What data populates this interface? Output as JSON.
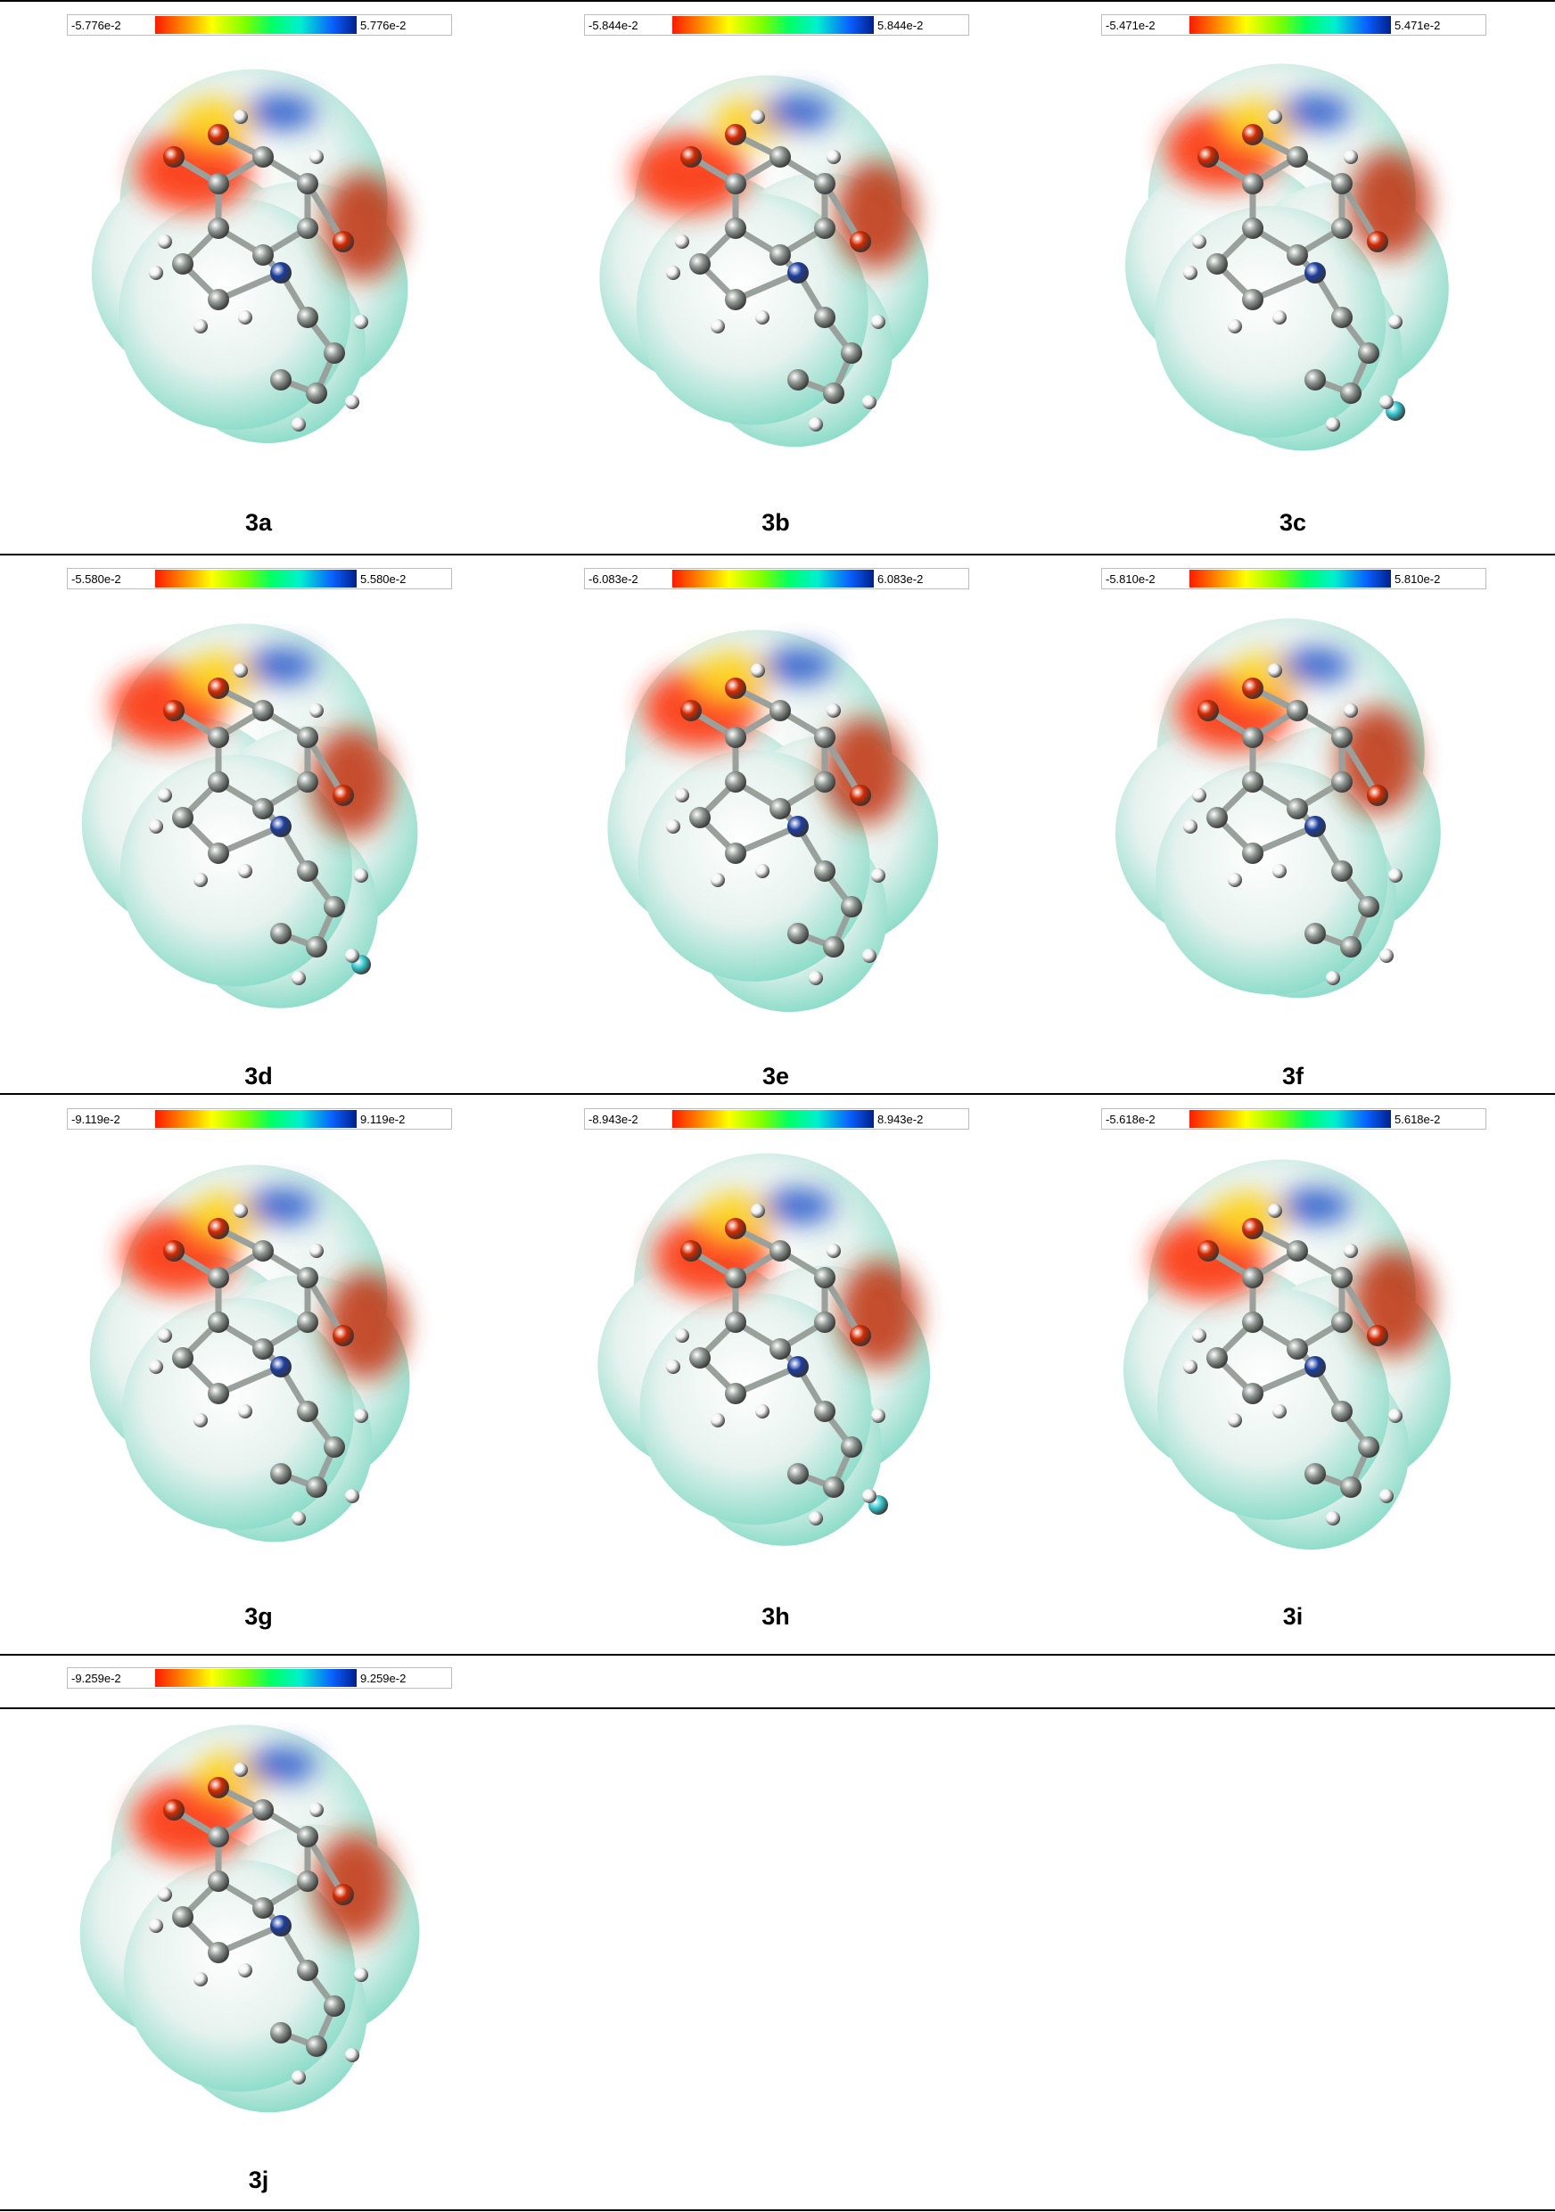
{
  "panels": [
    {
      "label": "3a",
      "scale_min": "-5.776e-2",
      "scale_max": "5.776e-2"
    },
    {
      "label": "3b",
      "scale_min": "-5.844e-2",
      "scale_max": "5.844e-2"
    },
    {
      "label": "3c",
      "scale_min": "-5.471e-2",
      "scale_max": "5.471e-2"
    },
    {
      "label": "3d",
      "scale_min": "-5.580e-2",
      "scale_max": "5.580e-2"
    },
    {
      "label": "3e",
      "scale_min": "-6.083e-2",
      "scale_max": "6.083e-2"
    },
    {
      "label": "3f",
      "scale_min": "-5.810e-2",
      "scale_max": "5.810e-2"
    },
    {
      "label": "3g",
      "scale_min": "-9.119e-2",
      "scale_max": "9.119e-2"
    },
    {
      "label": "3h",
      "scale_min": "-8.943e-2",
      "scale_max": "8.943e-2"
    },
    {
      "label": "3i",
      "scale_min": "-5.618e-2",
      "scale_max": "5.618e-2"
    },
    {
      "label": "3j",
      "scale_min": "-9.259e-2",
      "scale_max": "9.259e-2"
    }
  ],
  "colors": {
    "negative": "#ff2a00",
    "neutral": "#e6f2ee",
    "positive_mild": "#7fd9c4",
    "positive": "#1e50c8",
    "carbon": "#8d9590",
    "hydrogen": "#f2f2f2",
    "oxygen": "#d42a00",
    "nitrogen": "#1c3d9e",
    "halogen": "#36c9d0"
  }
}
